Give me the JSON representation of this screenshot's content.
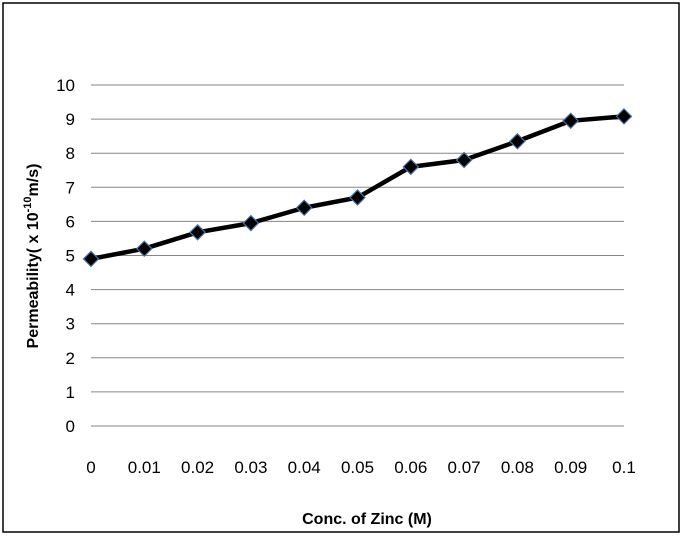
{
  "chart_data": {
    "type": "line",
    "title": "",
    "xlabel": "Conc. of Zinc (M)",
    "ylabel": {
      "prefix": "Permeability( x 10",
      "superscript": "-10",
      "suffix": "m/s)"
    },
    "categories": [
      "0",
      "0.01",
      "0.02",
      "0.03",
      "0.04",
      "0.05",
      "0.06",
      "0.07",
      "0.08",
      "0.09",
      "0.1"
    ],
    "y_ticks": [
      "0",
      "1",
      "2",
      "3",
      "4",
      "5",
      "6",
      "7",
      "8",
      "9",
      "10"
    ],
    "series": [
      {
        "values": [
          4.9,
          5.2,
          5.68,
          5.95,
          6.4,
          6.7,
          7.6,
          7.8,
          8.35,
          8.95,
          9.08
        ]
      }
    ],
    "ylim": [
      0,
      10
    ],
    "grid": true,
    "legend": "none",
    "colors": {
      "line": "#000000",
      "marker_fill": "#000000",
      "marker_stroke": "#4a6fa5",
      "grid": "#868686",
      "frame": "#000000"
    }
  }
}
